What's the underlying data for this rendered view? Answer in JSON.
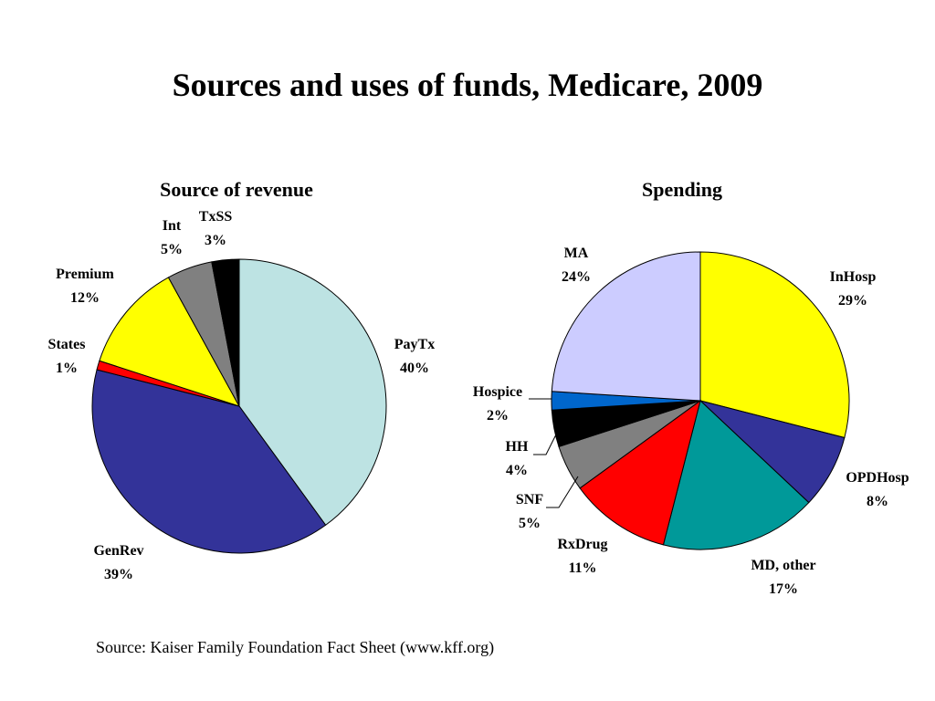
{
  "page": {
    "title": "Sources and uses of funds, Medicare, 2009",
    "source": "Source:  Kaiser Family Foundation Fact Sheet (www.kff.org)"
  },
  "chart_data": [
    {
      "type": "pie",
      "title": "Source of revenue",
      "slices": [
        {
          "name": "PayTx",
          "value": 40,
          "label": "40%",
          "color": "#BDE3E3"
        },
        {
          "name": "GenRev",
          "value": 39,
          "label": "39%",
          "color": "#333399"
        },
        {
          "name": "States",
          "value": 1,
          "label": "1%",
          "color": "#FF0000"
        },
        {
          "name": "Premium",
          "value": 12,
          "label": "12%",
          "color": "#FFFF00"
        },
        {
          "name": "Int",
          "value": 5,
          "label": "5%",
          "color": "#808080"
        },
        {
          "name": "TxSS",
          "value": 3,
          "label": "3%",
          "color": "#000000"
        }
      ]
    },
    {
      "type": "pie",
      "title": "Spending",
      "slices": [
        {
          "name": "InHosp",
          "value": 29,
          "label": "29%",
          "color": "#FFFF00"
        },
        {
          "name": "OPDHosp",
          "value": 8,
          "label": "8%",
          "color": "#333399"
        },
        {
          "name": "MD, other",
          "value": 17,
          "label": "17%",
          "color": "#009999"
        },
        {
          "name": "RxDrug",
          "value": 11,
          "label": "11%",
          "color": "#FF0000"
        },
        {
          "name": "SNF",
          "value": 5,
          "label": "5%",
          "color": "#808080"
        },
        {
          "name": "HH",
          "value": 4,
          "label": "4%",
          "color": "#000000"
        },
        {
          "name": "Hospice",
          "value": 2,
          "label": "2%",
          "color": "#0066CC"
        },
        {
          "name": "MA",
          "value": 24,
          "label": "24%",
          "color": "#CCCCFF"
        }
      ]
    }
  ]
}
